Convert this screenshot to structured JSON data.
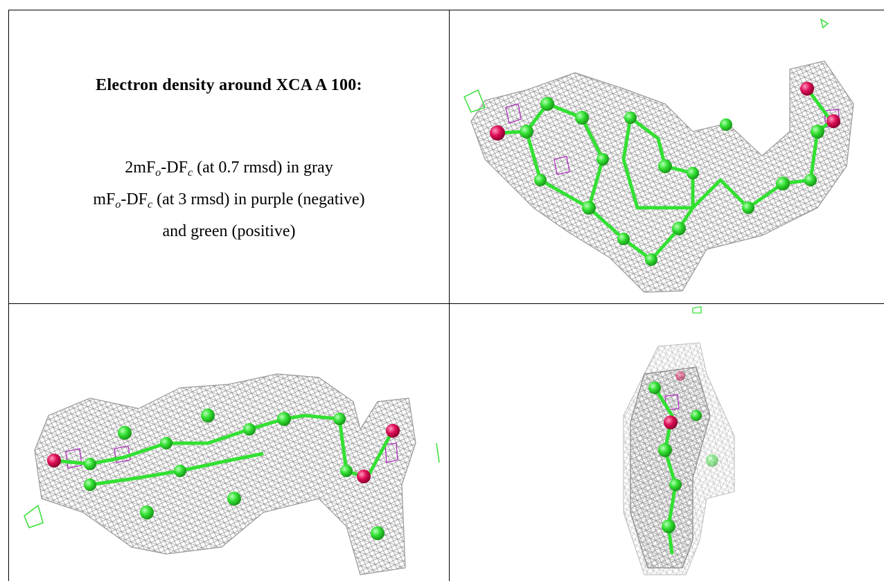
{
  "header": {
    "title": "Electron density around XCA A 100:"
  },
  "legend": {
    "lines": [
      [
        "2mF",
        "o",
        "-DF",
        "c",
        " (at 0.7 rmsd) in gray"
      ],
      [
        "mF",
        "o",
        "-DF",
        "c",
        " (at 3 rmsd) in purple (negative)"
      ],
      [
        "and green (positive)"
      ]
    ]
  }
}
